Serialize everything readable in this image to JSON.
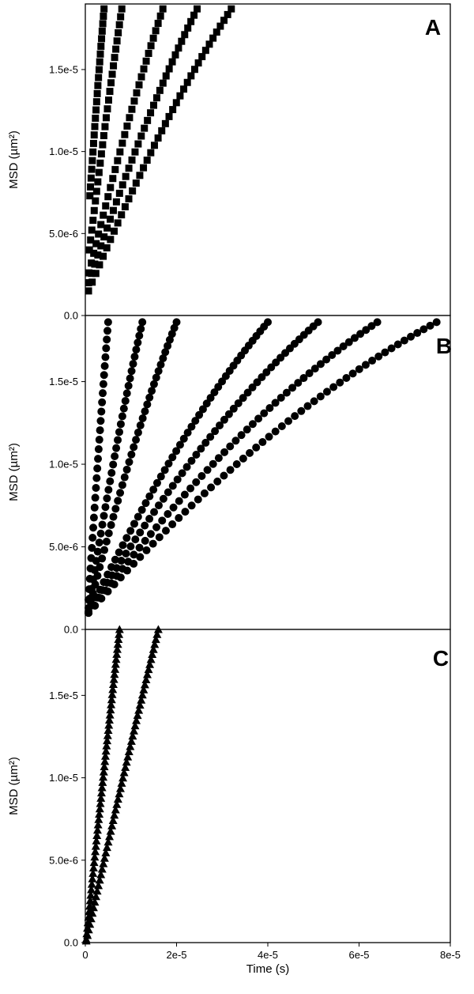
{
  "chart_data": [
    {
      "type": "scatter",
      "panel_label": "A",
      "marker": "square",
      "marker_color": "#000000",
      "ylabel": "MSD (µm²)",
      "ytick_labels": [
        "0.0",
        "5.0e-6",
        "1.0e-5",
        "1.5e-5"
      ],
      "xlim": [
        0,
        8e-05
      ],
      "ylim": [
        0,
        1.9e-05
      ],
      "series": [
        {
          "x_start": 1e-06,
          "x_end": 4.1e-06,
          "y_start": 7.3e-06,
          "y_end": 1.87e-05,
          "points": 24,
          "curve": 0.1
        },
        {
          "x_start": 9e-07,
          "x_end": 8e-06,
          "y_start": 4e-06,
          "y_end": 1.87e-05,
          "points": 28,
          "curve": 0.12
        },
        {
          "x_start": 8e-07,
          "x_end": 1.7e-05,
          "y_start": 2.6e-06,
          "y_end": 1.87e-05,
          "points": 32,
          "curve": 0.16
        },
        {
          "x_start": 7e-07,
          "x_end": 2.45e-05,
          "y_start": 2e-06,
          "y_end": 1.87e-05,
          "points": 36,
          "curve": 0.2
        },
        {
          "x_start": 7e-07,
          "x_end": 3.2e-05,
          "y_start": 1.5e-06,
          "y_end": 1.87e-05,
          "points": 40,
          "curve": 0.22
        }
      ]
    },
    {
      "type": "scatter",
      "panel_label": "B",
      "marker": "circle",
      "marker_color": "#000000",
      "ylabel": "MSD (µm²)",
      "ytick_labels": [
        "0.0",
        "5.0e-6",
        "1.0e-5",
        "1.5e-5"
      ],
      "xlim": [
        0,
        8e-05
      ],
      "ylim": [
        0,
        1.9e-05
      ],
      "series": [
        {
          "x_start": 7e-07,
          "x_end": 5e-06,
          "y_start": 1.8e-06,
          "y_end": 1.86e-05,
          "points": 30,
          "curve": 0.1
        },
        {
          "x_start": 7e-07,
          "x_end": 1.25e-05,
          "y_start": 1.3e-06,
          "y_end": 1.86e-05,
          "points": 36,
          "curve": 0.18
        },
        {
          "x_start": 7e-07,
          "x_end": 2e-05,
          "y_start": 1.1e-06,
          "y_end": 1.86e-05,
          "points": 40,
          "curve": 0.22
        },
        {
          "x_start": 7e-07,
          "x_end": 4e-05,
          "y_start": 1e-06,
          "y_end": 1.86e-05,
          "points": 48,
          "curve": 0.27
        },
        {
          "x_start": 7e-07,
          "x_end": 5.1e-05,
          "y_start": 1e-06,
          "y_end": 1.86e-05,
          "points": 50,
          "curve": 0.3
        },
        {
          "x_start": 7e-07,
          "x_end": 6.4e-05,
          "y_start": 1e-06,
          "y_end": 1.86e-05,
          "points": 52,
          "curve": 0.33
        },
        {
          "x_start": 7e-07,
          "x_end": 7.7e-05,
          "y_start": 1e-06,
          "y_end": 1.86e-05,
          "points": 55,
          "curve": 0.35
        }
      ]
    },
    {
      "type": "scatter",
      "panel_label": "C",
      "marker": "triangle",
      "marker_color": "#000000",
      "ylabel": "MSD (µm²)",
      "xlabel": "Time (s)",
      "ytick_labels": [
        "0.0",
        "5.0e-6",
        "1.0e-5",
        "1.5e-5"
      ],
      "xtick_labels": [
        "0",
        "2e-5",
        "4e-5",
        "6e-5",
        "8e-5"
      ],
      "xlim": [
        0,
        8e-05
      ],
      "ylim": [
        0,
        1.9e-05
      ],
      "series": [
        {
          "x_start": 2e-07,
          "x_end": 7.5e-06,
          "y_start": 2e-07,
          "y_end": 1.9e-05,
          "points": 60,
          "curve": 0.06
        },
        {
          "x_start": 2e-07,
          "x_end": 1.6e-05,
          "y_start": 1e-07,
          "y_end": 1.9e-05,
          "points": 60,
          "curve": 0.06
        }
      ]
    }
  ]
}
